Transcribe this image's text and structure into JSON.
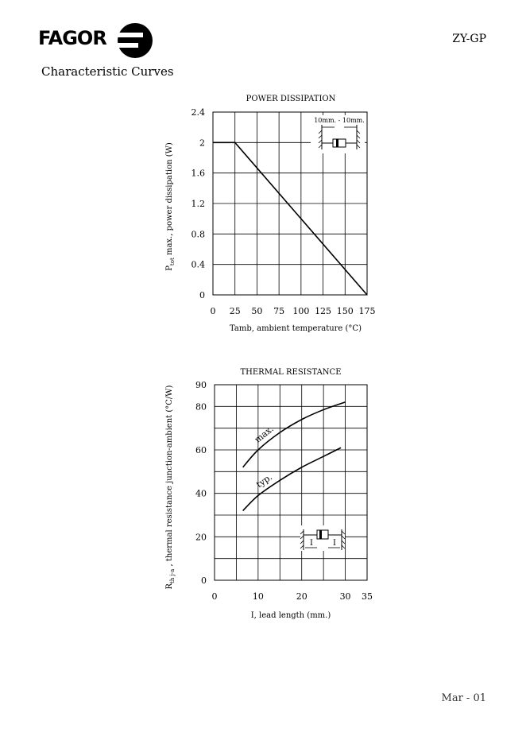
{
  "header": {
    "brand": "FAGOR",
    "doc_code": "ZY-GP",
    "section_title": "Characteristic Curves"
  },
  "footer": {
    "date": "Mar - 01"
  },
  "chart_data": [
    {
      "type": "line",
      "title": "POWER DISSIPATION",
      "ylabel_parts": [
        "P",
        "tot",
        " max., power dissipation (W)"
      ],
      "xlabel": "Tamb, ambient temperature (°C)",
      "xlim": [
        0,
        175
      ],
      "ylim": [
        0,
        2.4
      ],
      "xticks": [
        0,
        25,
        50,
        75,
        100,
        125,
        150,
        175
      ],
      "yticks": [
        0,
        0.4,
        0.8,
        1.2,
        1.6,
        2,
        2.4
      ],
      "grid": true,
      "inset_label": "10mm. - 10mm.",
      "series": [
        {
          "points": [
            [
              0,
              2
            ],
            [
              25,
              2
            ],
            [
              175,
              0
            ]
          ]
        }
      ]
    },
    {
      "type": "line",
      "title": "THERMAL RESISTANCE",
      "ylabel_parts": [
        "R",
        "th j-a",
        " , thermal resistance junction-ambient (°C/W)"
      ],
      "xlabel": "I, lead length (mm.)",
      "xlim": [
        0,
        35
      ],
      "ylim": [
        0,
        90
      ],
      "xticks": [
        0,
        10,
        20,
        30,
        35
      ],
      "yticks": [
        0,
        20,
        40,
        60,
        80,
        90
      ],
      "grid": true,
      "inset_label": "I",
      "series": [
        {
          "name": "max.",
          "points": [
            [
              6.5,
              52
            ],
            [
              10,
              60
            ],
            [
              15,
              68
            ],
            [
              20,
              74
            ],
            [
              25,
              78.5
            ],
            [
              30,
              82
            ]
          ]
        },
        {
          "name": "typ.",
          "points": [
            [
              6.5,
              32
            ],
            [
              10,
              39
            ],
            [
              15,
              46
            ],
            [
              20,
              52
            ],
            [
              25,
              57
            ],
            [
              29,
              61
            ]
          ]
        }
      ]
    }
  ]
}
